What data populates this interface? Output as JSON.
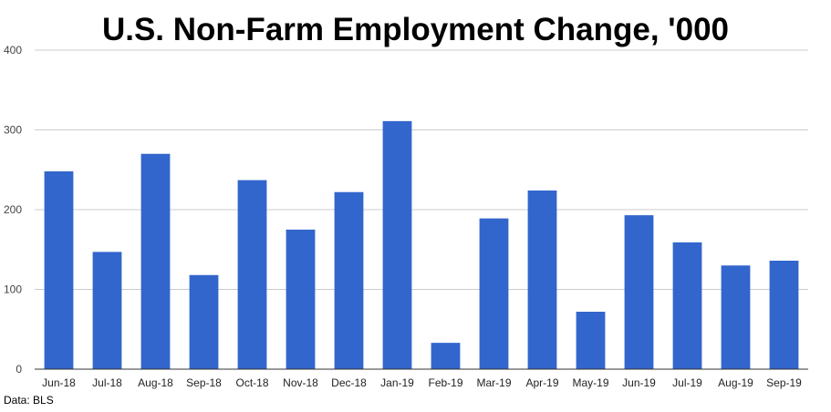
{
  "chart_data": {
    "type": "bar",
    "title": "U.S. Non-Farm Employment Change, '000",
    "xlabel": "",
    "ylabel": "",
    "categories": [
      "Jun-18",
      "Jul-18",
      "Aug-18",
      "Sep-18",
      "Oct-18",
      "Nov-18",
      "Dec-18",
      "Jan-19",
      "Feb-19",
      "Mar-19",
      "Apr-19",
      "May-19",
      "Jun-19",
      "Jul-19",
      "Aug-19",
      "Sep-19"
    ],
    "values": [
      248,
      147,
      270,
      118,
      237,
      175,
      222,
      311,
      33,
      189,
      224,
      72,
      193,
      159,
      130,
      136
    ],
    "ylim": [
      0,
      400
    ],
    "yticks": [
      0,
      100,
      200,
      300,
      400
    ],
    "grid": true,
    "legend": "none",
    "bar_color": "#3366cc"
  },
  "source": "Data: BLS"
}
